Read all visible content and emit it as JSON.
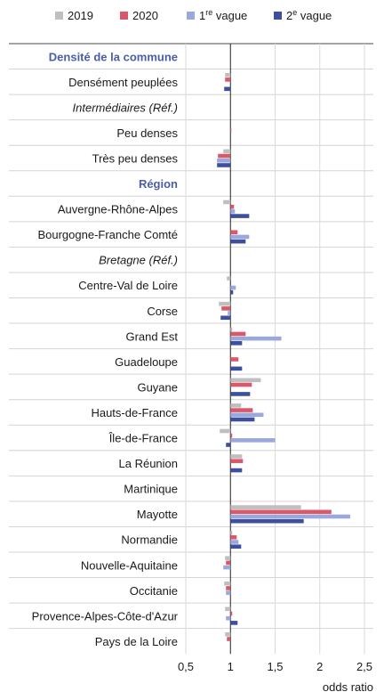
{
  "chart_data": {
    "type": "bar",
    "orientation": "horizontal",
    "title": "",
    "xlabel": "odds ratio",
    "ylabel": "",
    "xlim": [
      0.5,
      2.5
    ],
    "xticks": [
      0.5,
      1,
      1.5,
      2,
      2.5
    ],
    "xtick_labels": [
      "0,5",
      "1",
      "1,5",
      "2",
      "2,5"
    ],
    "reference_line": 1,
    "grid": "vertical",
    "legend_position": "top",
    "colors": {
      "2019": "#bfbfbf",
      "2020": "#d9586a",
      "1re vague": "#9aa8dc",
      "2e vague": "#3d4f9e"
    },
    "series": [
      {
        "name": "2019",
        "color": "#bfbfbf"
      },
      {
        "name": "2020",
        "color": "#d9586a"
      },
      {
        "name": "1re vague",
        "name_base": "1",
        "name_sup": "re",
        "name_rest": " vague",
        "color": "#9aa8dc"
      },
      {
        "name": "2e vague",
        "name_base": "2",
        "name_sup": "e",
        "name_rest": " vague",
        "color": "#3d4f9e"
      }
    ],
    "rows": [
      {
        "label": "Densité de la commune",
        "kind": "section"
      },
      {
        "label": "Densément peuplées",
        "kind": "data",
        "values": [
          0.94,
          0.94,
          1.0,
          0.93
        ]
      },
      {
        "label": "Intermédiaires (Réf.)",
        "kind": "ref"
      },
      {
        "label": "Peu denses",
        "kind": "data",
        "values": [
          1.0,
          1.01,
          1.0,
          1.0
        ]
      },
      {
        "label": "Très peu denses",
        "kind": "data",
        "values": [
          0.92,
          0.86,
          0.85,
          0.85
        ]
      },
      {
        "label": "Région",
        "kind": "section"
      },
      {
        "label": "Auvergne-Rhône-Alpes",
        "kind": "data",
        "values": [
          0.92,
          1.04,
          1.05,
          1.21
        ]
      },
      {
        "label": "Bourgogne-Franche Comté",
        "kind": "data",
        "values": [
          1.0,
          1.08,
          1.21,
          1.17
        ]
      },
      {
        "label": "Bretagne (Réf.)",
        "kind": "ref"
      },
      {
        "label": "Centre-Val de Loire",
        "kind": "data",
        "values": [
          0.96,
          1.0,
          1.06,
          1.03
        ]
      },
      {
        "label": "Corse",
        "kind": "data",
        "values": [
          0.87,
          0.9,
          0.97,
          0.89
        ]
      },
      {
        "label": "Grand Est",
        "kind": "data",
        "values": [
          1.02,
          1.17,
          1.57,
          1.13
        ]
      },
      {
        "label": "Guadeloupe",
        "kind": "data",
        "values": [
          1.0,
          1.09,
          1.0,
          1.13
        ]
      },
      {
        "label": "Guyane",
        "kind": "data",
        "values": [
          1.34,
          1.24,
          1.0,
          1.22
        ]
      },
      {
        "label": "Hauts-de-France",
        "kind": "data",
        "values": [
          1.12,
          1.25,
          1.37,
          1.27
        ]
      },
      {
        "label": "Île-de-France",
        "kind": "data",
        "values": [
          0.88,
          1.02,
          1.5,
          0.95
        ]
      },
      {
        "label": "La Réunion",
        "kind": "data",
        "values": [
          1.13,
          1.14,
          1.0,
          1.13
        ]
      },
      {
        "label": "Martinique",
        "kind": "data",
        "values": [
          1.0,
          1.0,
          1.0,
          1.0
        ]
      },
      {
        "label": "Mayotte",
        "kind": "data",
        "values": [
          1.79,
          2.13,
          2.34,
          1.82
        ]
      },
      {
        "label": "Normandie",
        "kind": "data",
        "values": [
          1.02,
          1.07,
          1.09,
          1.12
        ]
      },
      {
        "label": "Nouvelle-Aquitaine",
        "kind": "data",
        "values": [
          0.94,
          0.95,
          0.92,
          1.0
        ]
      },
      {
        "label": "Occitanie",
        "kind": "data",
        "values": [
          0.93,
          0.95,
          0.95,
          1.0
        ]
      },
      {
        "label": "Provence-Alpes-Côte-d'Azur",
        "kind": "data",
        "values": [
          0.94,
          1.02,
          0.95,
          1.08
        ]
      },
      {
        "label": "Pays de la Loire",
        "kind": "data",
        "values": [
          0.94,
          0.96,
          1.0,
          1.0
        ]
      }
    ]
  }
}
